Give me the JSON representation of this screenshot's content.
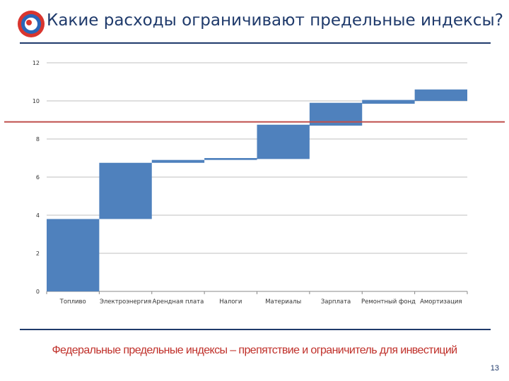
{
  "slide": {
    "title": "Какие расходы ограничивают предельные индексы?",
    "footer": "Федеральные предельные индексы – препятствие и ограничитель для инвестиций",
    "page_number": "13"
  },
  "colors": {
    "bar": "#4f81bd",
    "limit_line": "#c0504d",
    "grid": "#bfbfbf",
    "title": "#1f3a6b",
    "footer": "#c0302a"
  },
  "chart_data": {
    "type": "bar",
    "subtype": "waterfall",
    "categories": [
      "Топливо",
      "Электроэнергия",
      "Арендная плата",
      "Налоги",
      "Материалы",
      "Зарплата",
      "Ремонтный фонд",
      "Амортизация"
    ],
    "ranges": [
      [
        0,
        3.8
      ],
      [
        3.8,
        6.75
      ],
      [
        6.75,
        6.9
      ],
      [
        6.9,
        7.0
      ],
      [
        6.95,
        8.75
      ],
      [
        8.7,
        9.9
      ],
      [
        9.85,
        10.05
      ],
      [
        10.0,
        10.6
      ]
    ],
    "limit_line": {
      "value": 8.9
    },
    "ylim": [
      0,
      12
    ],
    "yticks": [
      0,
      2,
      4,
      6,
      8,
      10,
      12
    ],
    "grid": true,
    "legend": "none"
  }
}
